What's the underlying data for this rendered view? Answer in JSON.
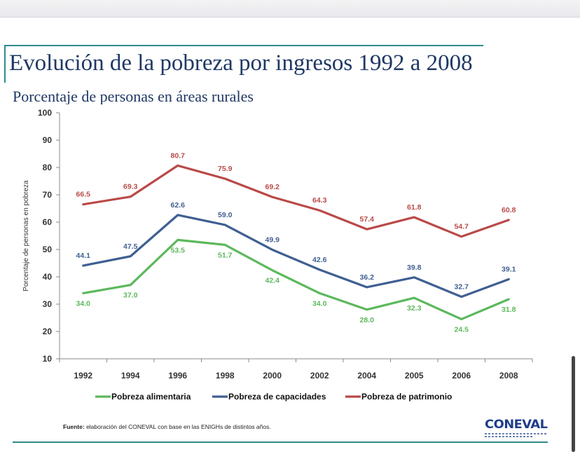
{
  "slide": {
    "title": "Evolución de la pobreza por ingresos 1992 a 2008",
    "subtitle": "Porcentaje de personas en áreas rurales",
    "source_label": "Fuente:",
    "source_text": " elaboración del CONEVAL con base en las ENIGHs de distintos años.",
    "logo_text": "CONEVAL"
  },
  "chart_data": {
    "type": "line",
    "title": "Porcentaje de personas en áreas rurales",
    "ylabel": "Porcentaje de personas en pobreza",
    "xlabel": "",
    "ylim": [
      10,
      100
    ],
    "yticks": [
      10,
      20,
      30,
      40,
      50,
      60,
      70,
      80,
      90,
      100
    ],
    "categories": [
      "1992",
      "1994",
      "1996",
      "1998",
      "2000",
      "2002",
      "2004",
      "2005",
      "2006",
      "2008"
    ],
    "legend_position": "bottom",
    "series": [
      {
        "name": "Pobreza alimentaria",
        "color": "#5cb85c",
        "values": [
          34.0,
          37.0,
          53.5,
          51.7,
          42.4,
          34.0,
          28.0,
          32.3,
          24.5,
          31.8
        ],
        "labels": [
          "34.0",
          "37.0",
          "53.5",
          "51.7",
          "42.4",
          "34.0",
          "28.0",
          "32.3",
          "24.5",
          "31.8"
        ],
        "label_side": "below"
      },
      {
        "name": "Pobreza de capacidades",
        "color": "#3f5f92",
        "values": [
          44.1,
          47.5,
          62.6,
          59.0,
          49.9,
          42.6,
          36.2,
          39.8,
          32.7,
          39.1
        ],
        "labels": [
          "44.1",
          "47.5",
          "62.6",
          "59.0",
          "49.9",
          "42.6",
          "36.2",
          "39.8",
          "32.7",
          "39.1"
        ],
        "label_side": "above"
      },
      {
        "name": "Pobreza de patrimonio",
        "color": "#b94a48",
        "values": [
          66.5,
          69.3,
          80.7,
          75.9,
          69.2,
          64.3,
          57.4,
          61.8,
          54.7,
          60.8
        ],
        "labels": [
          "66.5",
          "69.3",
          "80.7",
          "75.9",
          "69.2",
          "64.3",
          "57.4",
          "61.8",
          "54.7",
          "60.8"
        ],
        "label_side": "above"
      }
    ]
  }
}
